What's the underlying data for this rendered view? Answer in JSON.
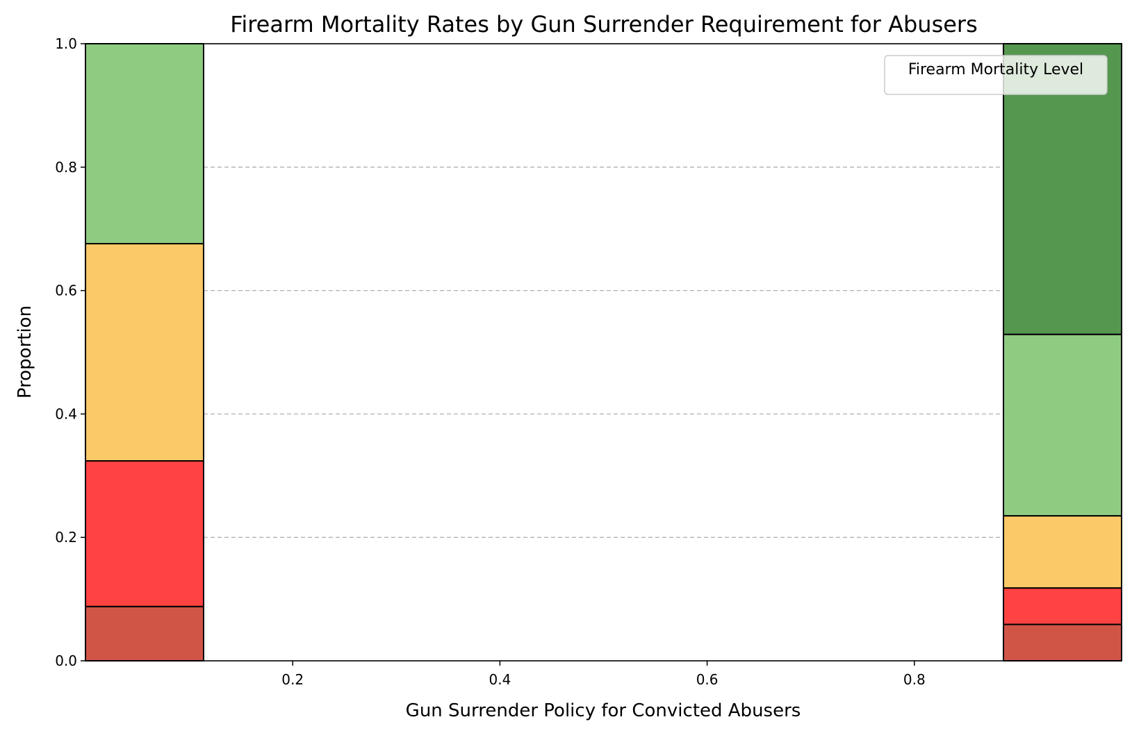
{
  "chart_data": {
    "type": "bar",
    "stacked": true,
    "normalized": true,
    "title": "Firearm Mortality Rates by Gun Surrender Requirement for Abusers",
    "xlabel": "Gun Surrender Policy for Convicted Abusers",
    "ylabel": "Proportion",
    "xlim": [
      0.0,
      1.0
    ],
    "ylim": [
      0.0,
      1.0
    ],
    "xticks": [
      0.2,
      0.4,
      0.6,
      0.8
    ],
    "xtick_labels": [
      "0.2",
      "0.4",
      "0.6",
      "0.8"
    ],
    "yticks": [
      0.0,
      0.2,
      0.4,
      0.6,
      0.8,
      1.0
    ],
    "ytick_labels": [
      "0.0",
      "0.2",
      "0.4",
      "0.6",
      "0.8",
      "1.0"
    ],
    "grid": "y-dashed",
    "legend": {
      "title": "Firearm Mortality Level",
      "placement": "top-right",
      "entries": []
    },
    "bars": [
      {
        "x_range": [
          0.0,
          0.114
        ],
        "segments": [
          {
            "from": 0.0,
            "to": 0.088,
            "color": "#d15547"
          },
          {
            "from": 0.088,
            "to": 0.324,
            "color": "#ff4242"
          },
          {
            "from": 0.324,
            "to": 0.676,
            "color": "#fbc967"
          },
          {
            "from": 0.676,
            "to": 1.0,
            "color": "#8fcc82"
          }
        ]
      },
      {
        "x_range": [
          0.886,
          1.0
        ],
        "segments": [
          {
            "from": 0.0,
            "to": 0.059,
            "color": "#d15547"
          },
          {
            "from": 0.059,
            "to": 0.118,
            "color": "#ff4242"
          },
          {
            "from": 0.118,
            "to": 0.235,
            "color": "#fbc967"
          },
          {
            "from": 0.235,
            "to": 0.529,
            "color": "#8fcc82"
          },
          {
            "from": 0.529,
            "to": 1.0,
            "color": "#55974f"
          }
        ]
      }
    ]
  }
}
